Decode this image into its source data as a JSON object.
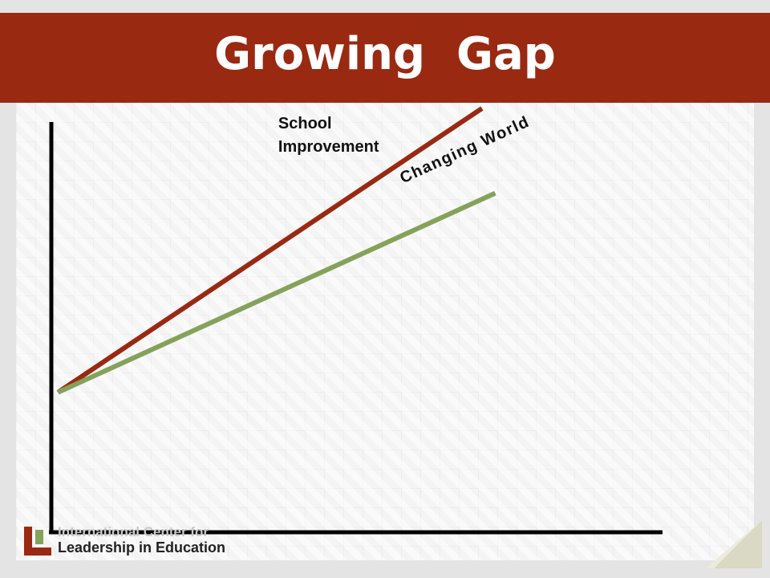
{
  "slide": {
    "title": "Growing  Gap"
  },
  "chart_data": {
    "type": "line",
    "title": "Growing  Gap",
    "xlabel": "",
    "ylabel": "",
    "grid": false,
    "xlim": [
      0,
      10
    ],
    "ylim": [
      0,
      10
    ],
    "series": [
      {
        "name": "School Improvement",
        "label_lines": [
          "School",
          "Improvement"
        ],
        "color": "#9a2912",
        "x": [
          0.1,
          6.5
        ],
        "y": [
          3.3,
          10
        ]
      },
      {
        "name": "Changing World",
        "color": "#85a25a",
        "x": [
          0.1,
          6.7
        ],
        "y": [
          3.3,
          8.0
        ]
      }
    ]
  },
  "logo": {
    "line1": "International Center for",
    "line2": "Leadership in Education",
    "mark_colors": [
      "#9a2912",
      "#85a25a"
    ]
  },
  "colors": {
    "title_bar": "#9a2912",
    "axis": "#000000",
    "background": "#e4e4e4"
  }
}
